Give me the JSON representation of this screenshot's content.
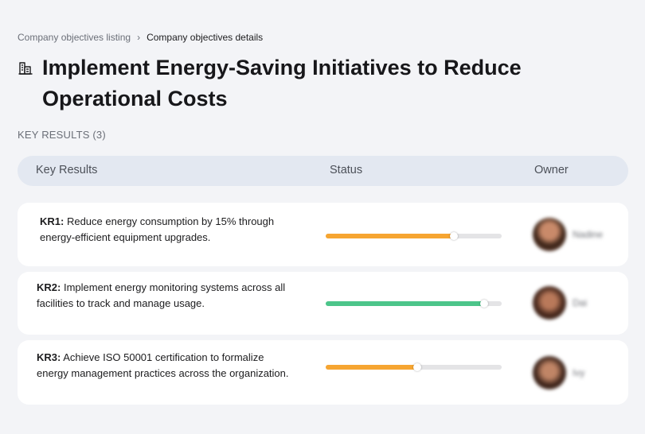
{
  "breadcrumb": {
    "parent": "Company objectives listing",
    "separator": "›",
    "current": "Company objectives details"
  },
  "objective": {
    "icon": "building-icon",
    "title": "Implement Energy-Saving Initiatives to Reduce Operational Costs"
  },
  "key_results_count_label": "KEY RESULTS (3)",
  "table": {
    "headers": {
      "key_results": "Key Results",
      "status": "Status",
      "owner": "Owner"
    }
  },
  "key_results": [
    {
      "code": "KR1:",
      "text": " Reduce energy consumption by 15% through energy-efficient equipment upgrades.",
      "progress": 0.73,
      "progress_color": "#f6a531",
      "owner": "Nadine"
    },
    {
      "code": "KR2:",
      "text": " Implement energy monitoring systems across all facilities to track and manage usage.",
      "progress": 0.9,
      "progress_color": "#4cc58a",
      "owner": "Dai"
    },
    {
      "code": "KR3:",
      "text": " Achieve ISO 50001 certification to formalize energy management practices across the organization.",
      "progress": 0.52,
      "progress_color": "#f6a531",
      "owner": "Ivy"
    }
  ]
}
